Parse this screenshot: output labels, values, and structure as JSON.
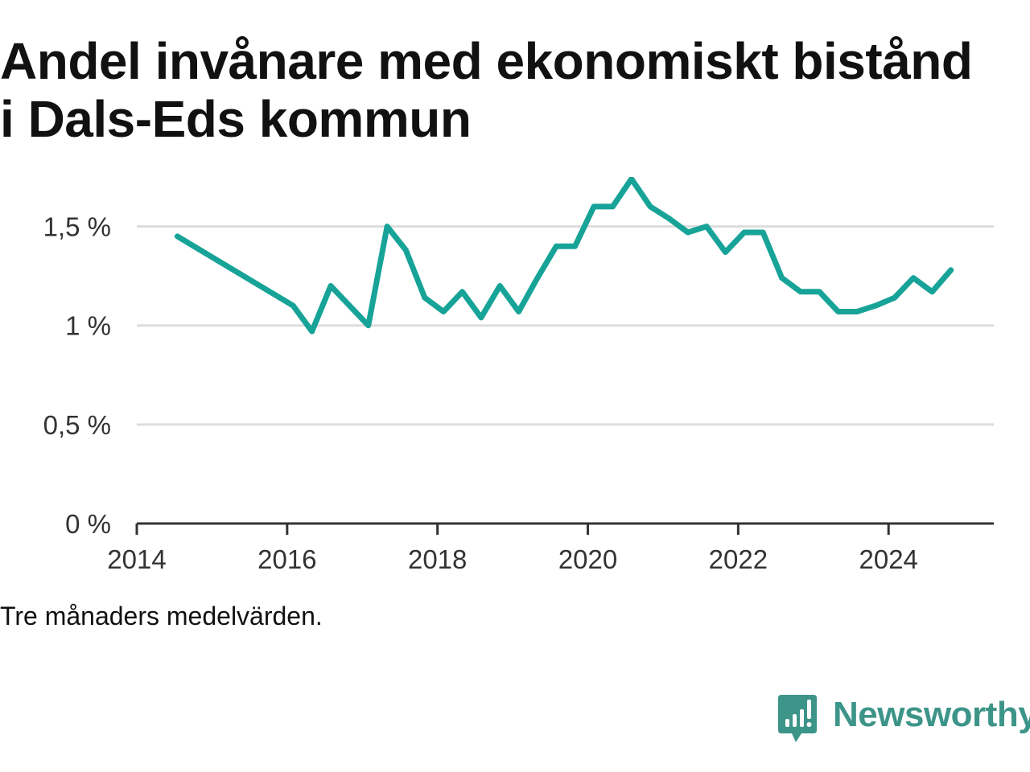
{
  "page": {
    "title": "Andel invånare med ekonomiskt bistånd i Dals-Eds kommun",
    "note": "Tre månaders medelvärden.",
    "brand": "Newsworthy",
    "brand_icon": "bar-chart-speech-bubble-icon",
    "colors": {
      "line": "#17a398",
      "brand": "#3d9488",
      "text": "#111111",
      "grid": "#dddddd"
    }
  },
  "chart_data": {
    "type": "line",
    "title": "Andel invånare med ekonomiskt bistånd i Dals-Eds kommun",
    "xlabel": "",
    "ylabel": "",
    "xlim": [
      2014.0,
      2025.4
    ],
    "ylim": [
      0,
      1.75
    ],
    "grid": true,
    "legend": "none",
    "x_ticks": [
      {
        "value": 2014,
        "label": "2014"
      },
      {
        "value": 2016,
        "label": "2016"
      },
      {
        "value": 2018,
        "label": "2018"
      },
      {
        "value": 2020,
        "label": "2020"
      },
      {
        "value": 2022,
        "label": "2022"
      },
      {
        "value": 2024,
        "label": "2024"
      }
    ],
    "y_ticks": [
      {
        "value": 0,
        "label": "0 %"
      },
      {
        "value": 0.5,
        "label": "0,5 %"
      },
      {
        "value": 1.0,
        "label": "1 %"
      },
      {
        "value": 1.5,
        "label": "1,5 %"
      }
    ],
    "series": [
      {
        "color": "#17a398",
        "x": [
          2014.54,
          2016.08,
          2016.33,
          2016.58,
          2017.08,
          2017.33,
          2017.58,
          2017.83,
          2018.08,
          2018.33,
          2018.58,
          2018.83,
          2019.08,
          2019.33,
          2019.58,
          2019.83,
          2020.08,
          2020.33,
          2020.58,
          2020.83,
          2021.08,
          2021.33,
          2021.58,
          2021.83,
          2022.08,
          2022.33,
          2022.58,
          2022.83,
          2023.08,
          2023.33,
          2023.58,
          2023.83,
          2024.08,
          2024.33,
          2024.58,
          2024.83
        ],
        "values": [
          1.45,
          1.1,
          0.97,
          1.2,
          1.0,
          1.5,
          1.38,
          1.14,
          1.07,
          1.17,
          1.04,
          1.2,
          1.07,
          1.24,
          1.4,
          1.4,
          1.6,
          1.6,
          1.74,
          1.6,
          1.54,
          1.47,
          1.5,
          1.37,
          1.47,
          1.47,
          1.24,
          1.17,
          1.17,
          1.07,
          1.07,
          1.1,
          1.14,
          1.24,
          1.17,
          1.28
        ]
      }
    ]
  }
}
